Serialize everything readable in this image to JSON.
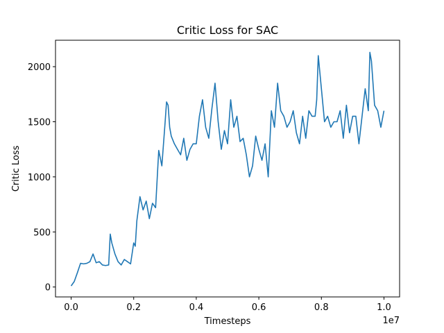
{
  "chart_data": {
    "type": "line",
    "title": "Critic Loss for SAC",
    "xlabel": "Timesteps",
    "ylabel": "Critic Loss",
    "x_offset_text": "1e7",
    "xlim": [
      -0.05,
      1.05
    ],
    "ylim": [
      -90,
      2240
    ],
    "x_ticks": [
      0.0,
      0.2,
      0.4,
      0.6,
      0.8,
      1.0
    ],
    "x_tick_labels": [
      "0.0",
      "0.2",
      "0.4",
      "0.6",
      "0.8",
      "1.0"
    ],
    "y_ticks": [
      0,
      500,
      1000,
      1500,
      2000
    ],
    "y_tick_labels": [
      "0",
      "500",
      "1000",
      "1500",
      "2000"
    ],
    "grid": false,
    "series": [
      {
        "color": "#1f77b4",
        "x": [
          0.0,
          0.01,
          0.02,
          0.03,
          0.04,
          0.05,
          0.06,
          0.07,
          0.08,
          0.09,
          0.1,
          0.11,
          0.12,
          0.125,
          0.13,
          0.14,
          0.15,
          0.16,
          0.17,
          0.18,
          0.19,
          0.2,
          0.205,
          0.21,
          0.22,
          0.23,
          0.24,
          0.25,
          0.26,
          0.27,
          0.28,
          0.29,
          0.3,
          0.305,
          0.31,
          0.315,
          0.32,
          0.33,
          0.34,
          0.35,
          0.36,
          0.37,
          0.38,
          0.39,
          0.4,
          0.41,
          0.42,
          0.43,
          0.44,
          0.45,
          0.46,
          0.47,
          0.48,
          0.49,
          0.5,
          0.51,
          0.52,
          0.53,
          0.54,
          0.55,
          0.56,
          0.57,
          0.58,
          0.59,
          0.6,
          0.61,
          0.62,
          0.63,
          0.64,
          0.65,
          0.66,
          0.67,
          0.68,
          0.69,
          0.7,
          0.71,
          0.72,
          0.73,
          0.74,
          0.75,
          0.76,
          0.77,
          0.78,
          0.785,
          0.79,
          0.8,
          0.81,
          0.82,
          0.83,
          0.84,
          0.85,
          0.86,
          0.87,
          0.88,
          0.89,
          0.9,
          0.91,
          0.92,
          0.93,
          0.94,
          0.95,
          0.955,
          0.96,
          0.97,
          0.98,
          0.99,
          1.0
        ],
        "y": [
          10,
          50,
          130,
          215,
          210,
          215,
          230,
          300,
          220,
          230,
          200,
          195,
          200,
          480,
          400,
          300,
          230,
          200,
          250,
          230,
          210,
          400,
          370,
          600,
          820,
          700,
          780,
          620,
          760,
          720,
          1240,
          1100,
          1480,
          1680,
          1650,
          1450,
          1370,
          1300,
          1250,
          1200,
          1350,
          1150,
          1250,
          1300,
          1300,
          1550,
          1700,
          1450,
          1350,
          1620,
          1850,
          1500,
          1250,
          1420,
          1300,
          1700,
          1450,
          1550,
          1320,
          1350,
          1200,
          1000,
          1100,
          1370,
          1250,
          1150,
          1300,
          1000,
          1600,
          1450,
          1850,
          1600,
          1550,
          1450,
          1500,
          1600,
          1400,
          1300,
          1550,
          1350,
          1600,
          1550,
          1550,
          1700,
          2100,
          1800,
          1500,
          1550,
          1450,
          1500,
          1500,
          1600,
          1350,
          1650,
          1400,
          1550,
          1550,
          1300,
          1550,
          1800,
          1600,
          2130,
          2050,
          1650,
          1600,
          1450,
          1600
        ]
      }
    ]
  }
}
